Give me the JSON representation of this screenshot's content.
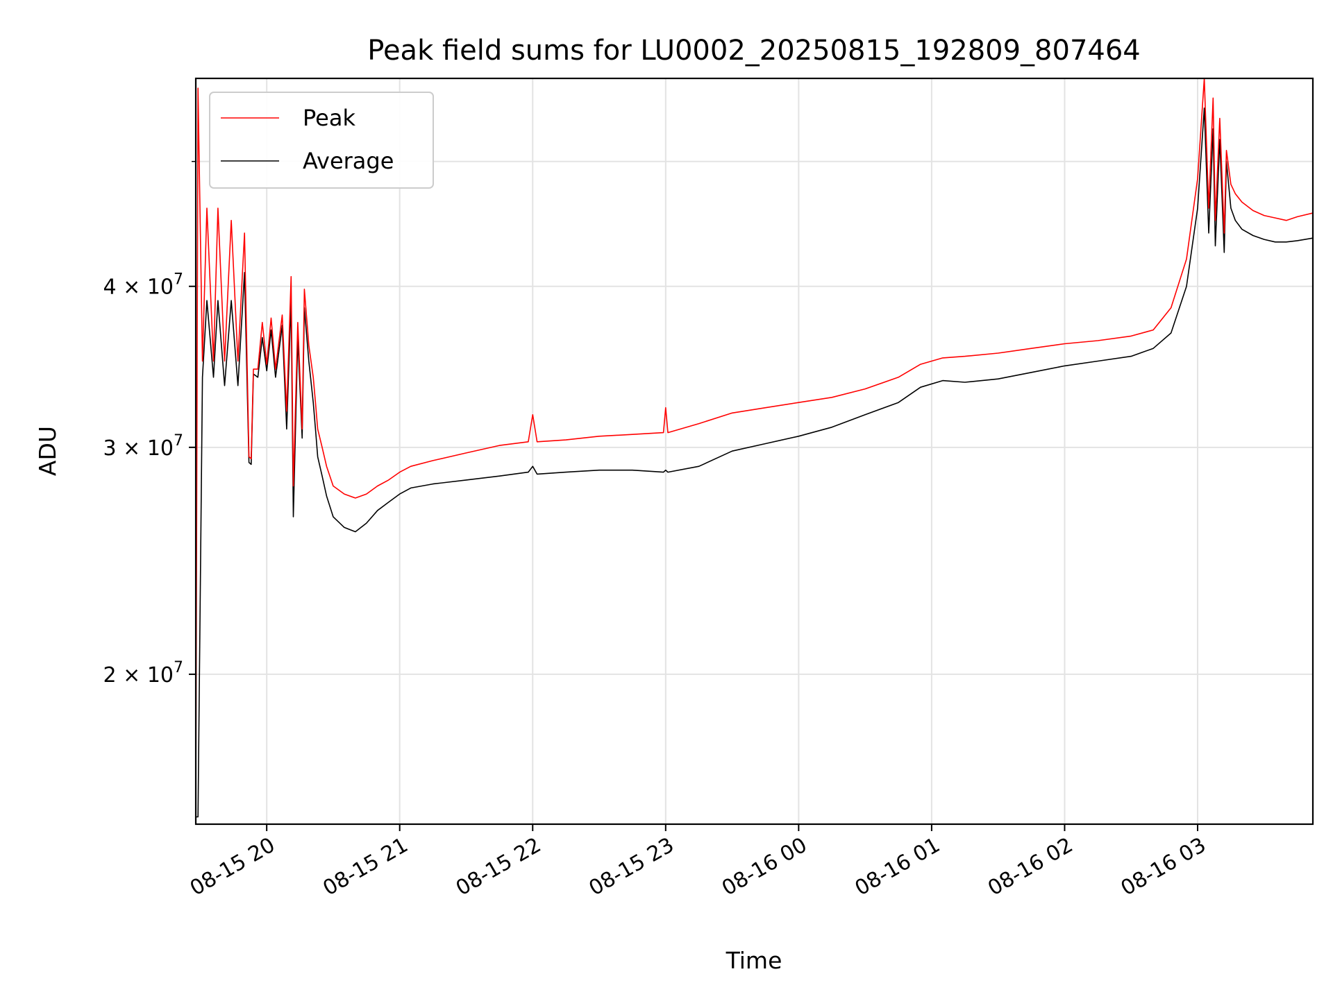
{
  "chart_data": {
    "type": "line",
    "title": "Peak field sums for LU0002_20250815_192809_807464",
    "xlabel": "Time",
    "ylabel": "ADU",
    "y_scale": "log",
    "ylim": [
      15300000,
      58000000
    ],
    "x_range": [
      "2025-08-15 19:28",
      "2025-08-16 03:52"
    ],
    "grid": true,
    "legend_placement": "upper left",
    "x_ticks": [
      {
        "t": "2025-08-15 20:00",
        "label": "08-15 20"
      },
      {
        "t": "2025-08-15 21:00",
        "label": "08-15 21"
      },
      {
        "t": "2025-08-15 22:00",
        "label": "08-15 22"
      },
      {
        "t": "2025-08-15 23:00",
        "label": "08-15 23"
      },
      {
        "t": "2025-08-16 00:00",
        "label": "08-16 00"
      },
      {
        "t": "2025-08-16 01:00",
        "label": "08-16 01"
      },
      {
        "t": "2025-08-16 02:00",
        "label": "08-16 02"
      },
      {
        "t": "2025-08-16 03:00",
        "label": "08-16 03"
      }
    ],
    "y_ticks": [
      {
        "value": 20000000,
        "base": "2",
        "sup": "7"
      },
      {
        "value": 30000000,
        "base": "3",
        "sup": "7"
      },
      {
        "value": 40000000,
        "base": "4",
        "sup": "7"
      }
    ],
    "y_minor_ticks": [
      50000000
    ],
    "series": [
      {
        "name": "Peak",
        "color": "#ff0000",
        "x": [
          "2025-08-15 19:28",
          "2025-08-15 19:29",
          "2025-08-15 19:31",
          "2025-08-15 19:33",
          "2025-08-15 19:36",
          "2025-08-15 19:38",
          "2025-08-15 19:41",
          "2025-08-15 19:44",
          "2025-08-15 19:47",
          "2025-08-15 19:50",
          "2025-08-15 19:52",
          "2025-08-15 19:53",
          "2025-08-15 19:54",
          "2025-08-15 19:56",
          "2025-08-15 19:58",
          "2025-08-15 20:00",
          "2025-08-15 20:02",
          "2025-08-15 20:04",
          "2025-08-15 20:07",
          "2025-08-15 20:09",
          "2025-08-15 20:11",
          "2025-08-15 20:12",
          "2025-08-15 20:14",
          "2025-08-15 20:16",
          "2025-08-15 20:17",
          "2025-08-15 20:19",
          "2025-08-15 20:21",
          "2025-08-15 20:22",
          "2025-08-15 20:23",
          "2025-08-15 20:25",
          "2025-08-15 20:27",
          "2025-08-15 20:30",
          "2025-08-15 20:35",
          "2025-08-15 20:40",
          "2025-08-15 20:45",
          "2025-08-15 20:50",
          "2025-08-15 20:55",
          "2025-08-15 21:00",
          "2025-08-15 21:05",
          "2025-08-15 21:15",
          "2025-08-15 21:30",
          "2025-08-15 21:45",
          "2025-08-15 21:58",
          "2025-08-15 22:00",
          "2025-08-15 22:02",
          "2025-08-15 22:15",
          "2025-08-15 22:30",
          "2025-08-15 22:45",
          "2025-08-15 22:59",
          "2025-08-15 23:00",
          "2025-08-15 23:01",
          "2025-08-15 23:15",
          "2025-08-15 23:30",
          "2025-08-15 23:45",
          "2025-08-16 00:00",
          "2025-08-16 00:15",
          "2025-08-16 00:30",
          "2025-08-16 00:45",
          "2025-08-16 00:55",
          "2025-08-16 01:05",
          "2025-08-16 01:15",
          "2025-08-16 01:30",
          "2025-08-16 01:45",
          "2025-08-16 02:00",
          "2025-08-16 02:15",
          "2025-08-16 02:30",
          "2025-08-16 02:40",
          "2025-08-16 02:48",
          "2025-08-16 02:55",
          "2025-08-16 03:00",
          "2025-08-16 03:03",
          "2025-08-16 03:05",
          "2025-08-16 03:07",
          "2025-08-16 03:08",
          "2025-08-16 03:10",
          "2025-08-16 03:12",
          "2025-08-16 03:13",
          "2025-08-16 03:15",
          "2025-08-16 03:17",
          "2025-08-16 03:20",
          "2025-08-16 03:25",
          "2025-08-16 03:30",
          "2025-08-16 03:35",
          "2025-08-16 03:40",
          "2025-08-16 03:45",
          "2025-08-16 03:52"
        ],
        "values": [
          16000000,
          57000000,
          35000000,
          46000000,
          35000000,
          46000000,
          35000000,
          45000000,
          35000000,
          44000000,
          29500000,
          29400000,
          34500000,
          34500000,
          37500000,
          34800000,
          37800000,
          34500000,
          38000000,
          32000000,
          40700000,
          28000000,
          37500000,
          31000000,
          39800000,
          36000000,
          34000000,
          32500000,
          31000000,
          30000000,
          29000000,
          28000000,
          27600000,
          27400000,
          27600000,
          28000000,
          28300000,
          28700000,
          29000000,
          29300000,
          29700000,
          30100000,
          30300000,
          31800000,
          30300000,
          30400000,
          30600000,
          30700000,
          30800000,
          32200000,
          30800000,
          31300000,
          31900000,
          32200000,
          32500000,
          32800000,
          33300000,
          34000000,
          34800000,
          35200000,
          35300000,
          35500000,
          35800000,
          36100000,
          36300000,
          36600000,
          37000000,
          38500000,
          42000000,
          48500000,
          58000000,
          46000000,
          56000000,
          45000000,
          54000000,
          44000000,
          51000000,
          48000000,
          47200000,
          46500000,
          45800000,
          45400000,
          45200000,
          45000000,
          45300000,
          45600000
        ]
      },
      {
        "name": "Average",
        "color": "#000000",
        "x": [
          "2025-08-15 19:28",
          "2025-08-15 19:29",
          "2025-08-15 19:31",
          "2025-08-15 19:33",
          "2025-08-15 19:36",
          "2025-08-15 19:38",
          "2025-08-15 19:41",
          "2025-08-15 19:44",
          "2025-08-15 19:47",
          "2025-08-15 19:50",
          "2025-08-15 19:52",
          "2025-08-15 19:53",
          "2025-08-15 19:54",
          "2025-08-15 19:56",
          "2025-08-15 19:58",
          "2025-08-15 20:00",
          "2025-08-15 20:02",
          "2025-08-15 20:04",
          "2025-08-15 20:07",
          "2025-08-15 20:09",
          "2025-08-15 20:11",
          "2025-08-15 20:12",
          "2025-08-15 20:14",
          "2025-08-15 20:16",
          "2025-08-15 20:17",
          "2025-08-15 20:19",
          "2025-08-15 20:21",
          "2025-08-15 20:22",
          "2025-08-15 20:23",
          "2025-08-15 20:25",
          "2025-08-15 20:27",
          "2025-08-15 20:30",
          "2025-08-15 20:35",
          "2025-08-15 20:40",
          "2025-08-15 20:45",
          "2025-08-15 20:50",
          "2025-08-15 20:55",
          "2025-08-15 21:00",
          "2025-08-15 21:05",
          "2025-08-15 21:15",
          "2025-08-15 21:30",
          "2025-08-15 21:45",
          "2025-08-15 21:58",
          "2025-08-15 22:00",
          "2025-08-15 22:02",
          "2025-08-15 22:15",
          "2025-08-15 22:30",
          "2025-08-15 22:45",
          "2025-08-15 22:59",
          "2025-08-15 23:00",
          "2025-08-15 23:01",
          "2025-08-15 23:15",
          "2025-08-15 23:30",
          "2025-08-15 23:45",
          "2025-08-16 00:00",
          "2025-08-16 00:15",
          "2025-08-16 00:30",
          "2025-08-16 00:45",
          "2025-08-16 00:55",
          "2025-08-16 01:05",
          "2025-08-16 01:15",
          "2025-08-16 01:30",
          "2025-08-16 01:45",
          "2025-08-16 02:00",
          "2025-08-16 02:15",
          "2025-08-16 02:30",
          "2025-08-16 02:40",
          "2025-08-16 02:48",
          "2025-08-16 02:55",
          "2025-08-16 03:00",
          "2025-08-16 03:03",
          "2025-08-16 03:05",
          "2025-08-16 03:07",
          "2025-08-16 03:08",
          "2025-08-16 03:10",
          "2025-08-16 03:12",
          "2025-08-16 03:13",
          "2025-08-16 03:15",
          "2025-08-16 03:17",
          "2025-08-16 03:20",
          "2025-08-16 03:25",
          "2025-08-16 03:30",
          "2025-08-16 03:35",
          "2025-08-16 03:40",
          "2025-08-16 03:45",
          "2025-08-16 03:52"
        ],
        "values": [
          15500000,
          15500000,
          34000000,
          39000000,
          34000000,
          39000000,
          33500000,
          39000000,
          33500000,
          41000000,
          29200000,
          29100000,
          34200000,
          34000000,
          36500000,
          34400000,
          37000000,
          34000000,
          37300000,
          31000000,
          39000000,
          26500000,
          36500000,
          30500000,
          38500000,
          35000000,
          32500000,
          31000000,
          29500000,
          28500000,
          27500000,
          26500000,
          26000000,
          25800000,
          26200000,
          26800000,
          27200000,
          27600000,
          27900000,
          28100000,
          28300000,
          28500000,
          28700000,
          29000000,
          28600000,
          28700000,
          28800000,
          28800000,
          28700000,
          28800000,
          28700000,
          29000000,
          29800000,
          30200000,
          30600000,
          31100000,
          31800000,
          32500000,
          33400000,
          33800000,
          33700000,
          33900000,
          34300000,
          34700000,
          35000000,
          35300000,
          35800000,
          36800000,
          40000000,
          46000000,
          55000000,
          44000000,
          53000000,
          43000000,
          52000000,
          42500000,
          50000000,
          46000000,
          45000000,
          44300000,
          43800000,
          43500000,
          43300000,
          43300000,
          43400000,
          43600000
        ]
      }
    ]
  }
}
